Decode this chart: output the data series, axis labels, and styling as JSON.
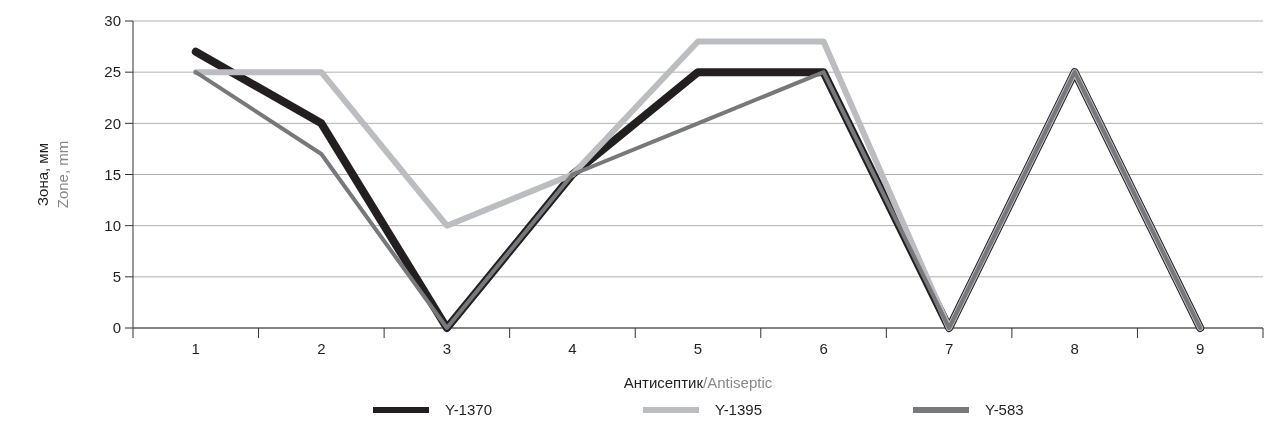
{
  "chart_data": {
    "type": "line",
    "xlabel": "Антисептик/Antiseptic",
    "ylabel": "Зона, мм\nZone, mm",
    "categories": [
      "1",
      "2",
      "3",
      "4",
      "5",
      "6",
      "7",
      "8",
      "9"
    ],
    "series": [
      {
        "name": "Y-1370",
        "color": "#231f20",
        "values": [
          27,
          20,
          0,
          15,
          25,
          25,
          0,
          25,
          0
        ]
      },
      {
        "name": "Y-1395",
        "color": "#bcbdc0",
        "values": [
          25,
          25,
          10,
          15,
          28,
          28,
          0,
          25,
          0
        ]
      },
      {
        "name": "Y-583",
        "color": "#77787b",
        "values": [
          25,
          17,
          0,
          15,
          20,
          25,
          0,
          25,
          0
        ]
      }
    ],
    "ylim": [
      0,
      30
    ],
    "yticks": [
      0,
      5,
      10,
      15,
      20,
      25,
      30
    ],
    "grid": "y",
    "legend": "bottom",
    "marker": "none",
    "line_style": "solid"
  }
}
